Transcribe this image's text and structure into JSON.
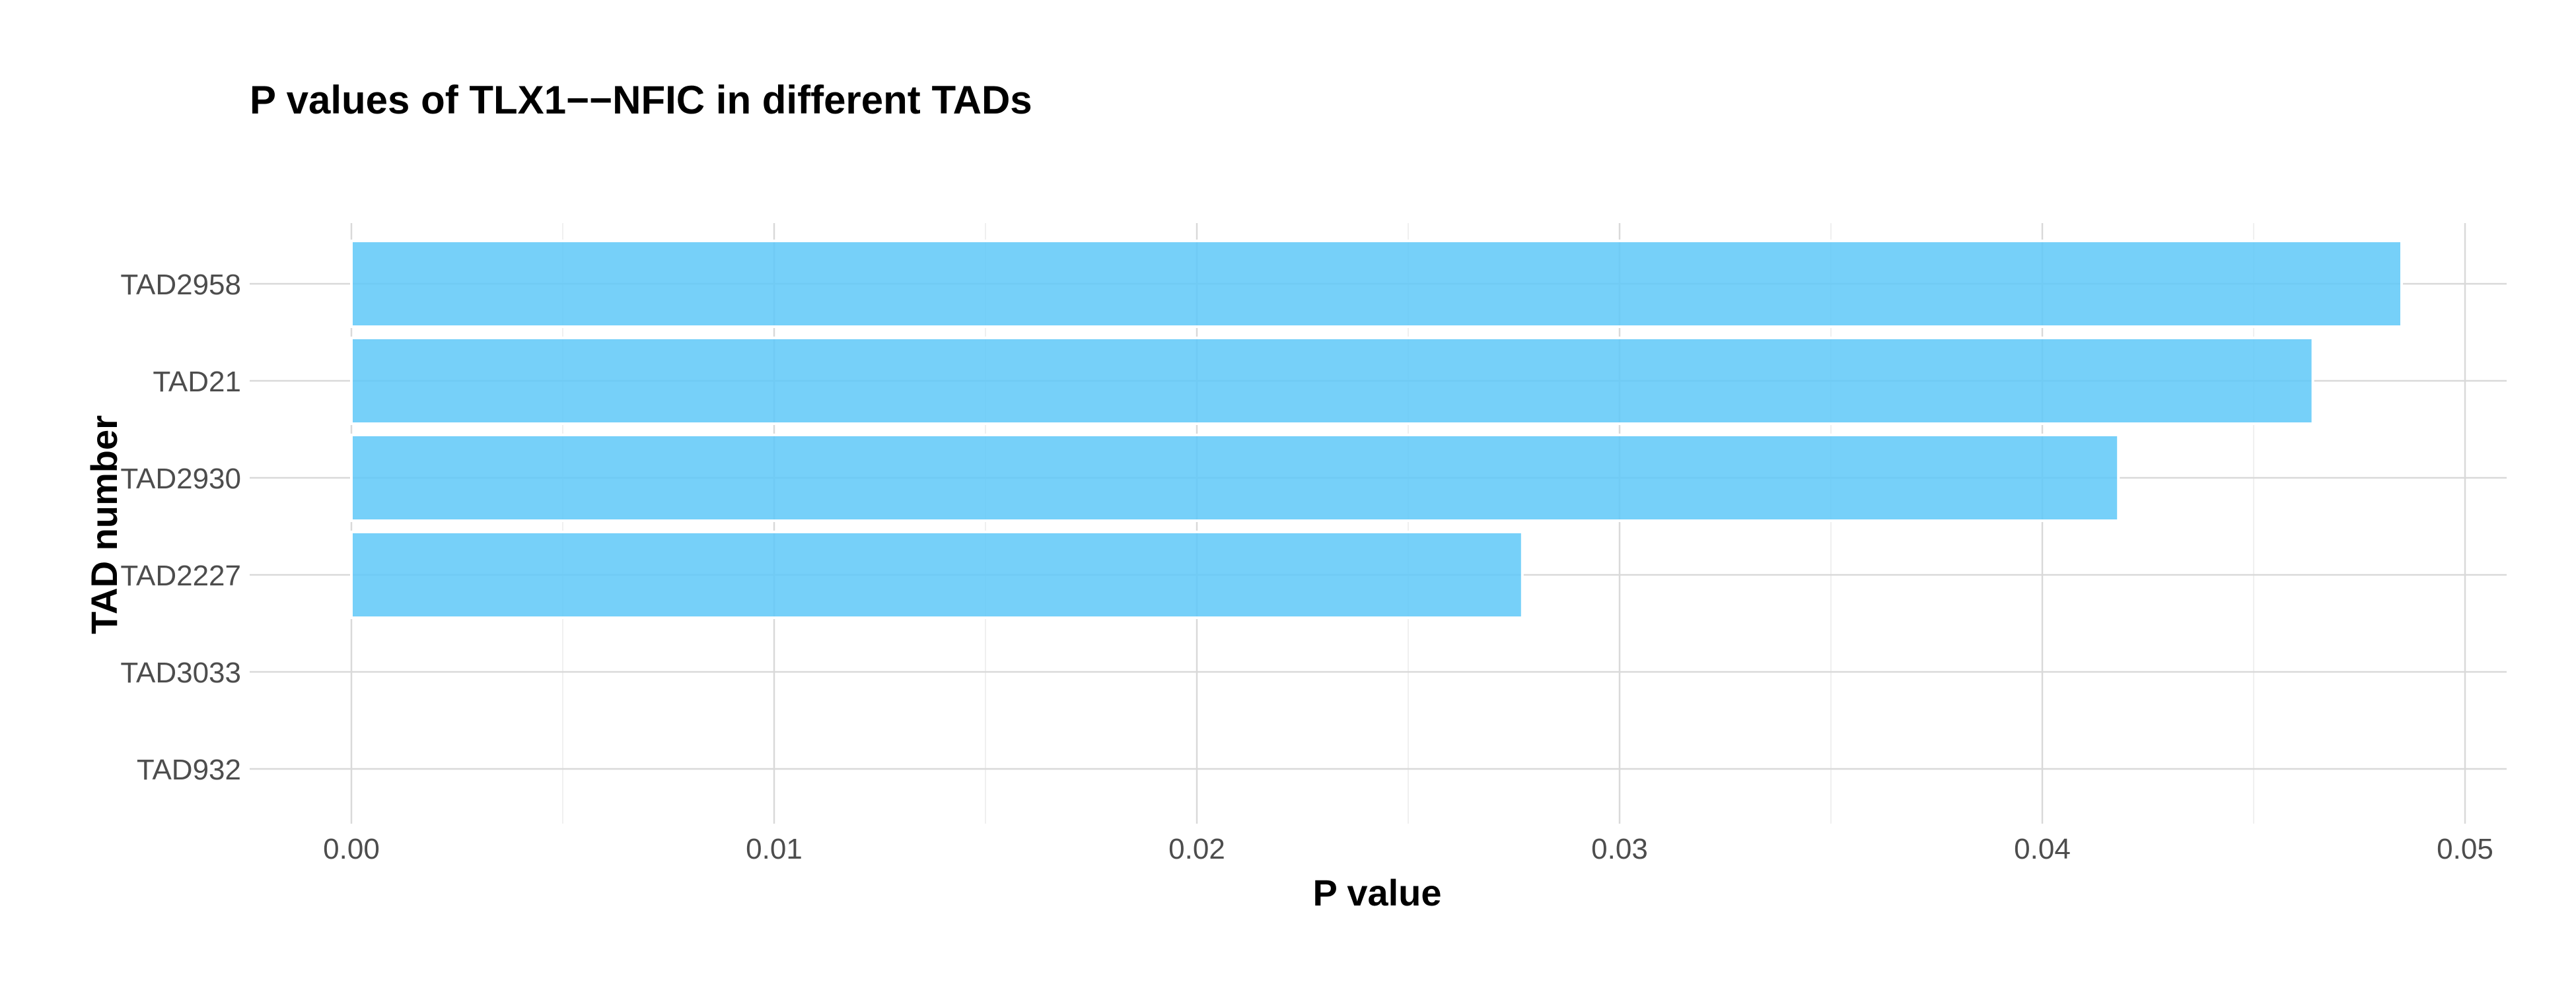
{
  "chart_data": {
    "type": "bar",
    "orientation": "horizontal",
    "title": "P values of TLX1−−NFIC in different TADs",
    "xlabel": "P value",
    "ylabel": "TAD number",
    "categories": [
      "TAD2958",
      "TAD21",
      "TAD2930",
      "TAD2227",
      "TAD3033",
      "TAD932"
    ],
    "values": [
      0.0485,
      0.0464,
      0.0418,
      0.0277,
      0,
      0
    ],
    "xlim": [
      -0.0023,
      0.051
    ],
    "x_ticks": [
      0,
      0.01,
      0.02,
      0.03,
      0.04,
      0.05
    ],
    "x_tick_labels": [
      "0.00",
      "0.01",
      "0.02",
      "0.03",
      "0.04",
      "0.05"
    ],
    "grid": true,
    "legend": "none",
    "bar_color": "#5ec8f8"
  }
}
